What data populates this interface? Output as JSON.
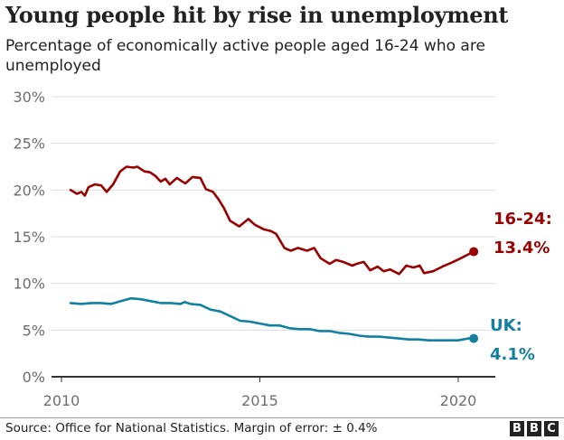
{
  "header": {
    "title": "Young people hit by rise in unemployment",
    "subtitle": "Percentage of economically active people aged 16-24 who are unemployed"
  },
  "footer": {
    "source": "Source: Office for National Statistics. Margin of error: ± 0.4%",
    "logo_letters": [
      "B",
      "B",
      "C"
    ]
  },
  "chart_data": {
    "type": "line",
    "title": "Young people hit by rise in unemployment",
    "subtitle": "Percentage of economically active people aged 16-24 who are unemployed",
    "xlabel": "",
    "ylabel": "",
    "xlim": [
      2009.75,
      2020.9
    ],
    "ylim": [
      0,
      30
    ],
    "yticks": [
      0,
      5,
      10,
      15,
      20,
      25,
      30
    ],
    "ytick_labels": [
      "0%",
      "5%",
      "10%",
      "15%",
      "20%",
      "25%",
      "30%"
    ],
    "xticks": [
      2010,
      2015,
      2020
    ],
    "xtick_labels": [
      "2010",
      "2015",
      "2020"
    ],
    "grid": true,
    "legend": "direct labels at line ends (right)",
    "series": [
      {
        "name": "16-24",
        "color": "#990000",
        "end_label": "16-24:",
        "end_value_label": "13.4%",
        "x": [
          2010.23,
          2010.39,
          2010.5,
          2010.59,
          2010.68,
          2010.84,
          2011.0,
          2011.14,
          2011.3,
          2011.48,
          2011.64,
          2011.82,
          2011.91,
          2012.09,
          2012.23,
          2012.37,
          2012.5,
          2012.62,
          2012.73,
          2012.91,
          2013.12,
          2013.3,
          2013.5,
          2013.64,
          2013.82,
          2013.96,
          2014.09,
          2014.25,
          2014.48,
          2014.71,
          2014.87,
          2015.09,
          2015.28,
          2015.41,
          2015.62,
          2015.78,
          2015.96,
          2016.19,
          2016.37,
          2016.53,
          2016.76,
          2016.92,
          2017.1,
          2017.33,
          2017.44,
          2017.62,
          2017.78,
          2017.97,
          2018.12,
          2018.28,
          2018.51,
          2018.69,
          2018.87,
          2019.03,
          2019.14,
          2019.37,
          2019.6,
          2019.82,
          2020.02,
          2020.25,
          2020.39
        ],
        "values": [
          20.0,
          19.6,
          19.8,
          19.4,
          20.3,
          20.6,
          20.5,
          19.8,
          20.6,
          22.0,
          22.5,
          22.4,
          22.5,
          22.0,
          21.9,
          21.5,
          20.9,
          21.2,
          20.6,
          21.3,
          20.7,
          21.4,
          21.3,
          20.1,
          19.8,
          19.0,
          18.1,
          16.7,
          16.1,
          16.9,
          16.3,
          15.8,
          15.6,
          15.3,
          13.8,
          13.5,
          13.8,
          13.5,
          13.8,
          12.7,
          12.1,
          12.5,
          12.3,
          11.9,
          12.1,
          12.3,
          11.4,
          11.8,
          11.3,
          11.5,
          11.0,
          11.9,
          11.7,
          11.9,
          11.1,
          11.3,
          11.8,
          12.2,
          12.6,
          13.1,
          13.4
        ]
      },
      {
        "name": "UK",
        "color": "#1380a1",
        "end_label": "UK:",
        "end_value_label": "4.1%",
        "x": [
          2010.23,
          2010.5,
          2010.75,
          2011.0,
          2011.25,
          2011.5,
          2011.75,
          2012.0,
          2012.25,
          2012.5,
          2012.75,
          2013.0,
          2013.1,
          2013.25,
          2013.5,
          2013.75,
          2014.0,
          2014.25,
          2014.5,
          2014.75,
          2015.0,
          2015.25,
          2015.5,
          2015.75,
          2016.0,
          2016.25,
          2016.5,
          2016.75,
          2017.0,
          2017.25,
          2017.5,
          2017.75,
          2018.0,
          2018.25,
          2018.5,
          2018.75,
          2019.0,
          2019.25,
          2019.5,
          2019.75,
          2020.0,
          2020.25,
          2020.39
        ],
        "values": [
          7.9,
          7.8,
          7.9,
          7.9,
          7.8,
          8.1,
          8.4,
          8.3,
          8.1,
          7.9,
          7.9,
          7.8,
          8.0,
          7.8,
          7.7,
          7.2,
          7.0,
          6.5,
          6.0,
          5.9,
          5.7,
          5.5,
          5.5,
          5.2,
          5.1,
          5.1,
          4.9,
          4.9,
          4.7,
          4.6,
          4.4,
          4.3,
          4.3,
          4.2,
          4.1,
          4.0,
          4.0,
          3.9,
          3.9,
          3.9,
          3.9,
          4.1,
          4.1
        ]
      }
    ]
  }
}
